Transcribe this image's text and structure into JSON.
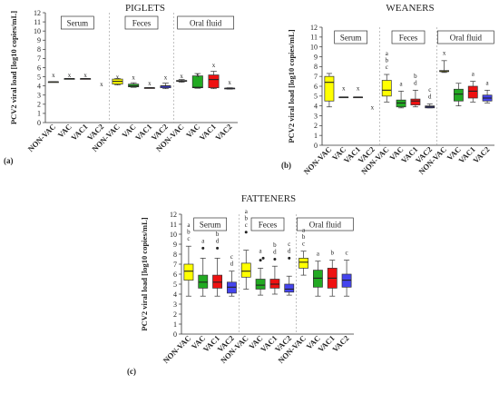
{
  "ylabel": "PCV2 viral load [log10 copies/mL]",
  "groups": [
    "Serum",
    "Feces",
    "Oral fluid"
  ],
  "categories": [
    "NON-VAC",
    "VAC",
    "VAC1",
    "VAC2"
  ],
  "colors": {
    "NON-VAC": "#ffff00",
    "VAC": "#22aa22",
    "VAC1": "#ee1111",
    "VAC2": "#4444ee"
  },
  "chart_data": [
    {
      "type": "box",
      "title": "PIGLETS",
      "panel_label": "(a)",
      "ylim": [
        0,
        12
      ],
      "yticks": [
        0,
        1,
        2,
        3,
        4,
        5,
        6,
        7,
        8,
        9,
        10,
        11,
        12
      ],
      "boxes": [
        {
          "group": "Serum",
          "cat": "NON-VAC",
          "min": 4.45,
          "q1": 4.45,
          "med": 4.45,
          "q3": 4.45,
          "max": 4.45,
          "mean": 5.2,
          "outliers": [],
          "letters": []
        },
        {
          "group": "Serum",
          "cat": "VAC",
          "min": 4.8,
          "q1": 4.8,
          "med": 4.8,
          "q3": 4.8,
          "max": 4.8,
          "mean": 5.2,
          "outliers": [],
          "letters": []
        },
        {
          "group": "Serum",
          "cat": "VAC1",
          "min": 4.8,
          "q1": 4.8,
          "med": 4.8,
          "q3": 4.8,
          "max": 4.8,
          "mean": 5.2,
          "outliers": [],
          "letters": []
        },
        {
          "group": "Serum",
          "cat": "VAC2",
          "min": null,
          "q1": null,
          "med": null,
          "q3": null,
          "max": null,
          "mean": 4.2,
          "outliers": [],
          "letters": []
        },
        {
          "group": "Feces",
          "cat": "NON-VAC",
          "min": 4.1,
          "q1": 4.2,
          "med": 4.5,
          "q3": 4.75,
          "max": 4.8,
          "mean": 5.0,
          "outliers": [],
          "letters": []
        },
        {
          "group": "Feces",
          "cat": "VAC",
          "min": 3.85,
          "q1": 3.9,
          "med": 4.0,
          "q3": 4.2,
          "max": 4.35,
          "mean": 4.95,
          "outliers": [],
          "letters": []
        },
        {
          "group": "Feces",
          "cat": "VAC1",
          "min": 3.8,
          "q1": 3.8,
          "med": 3.8,
          "q3": 3.8,
          "max": 3.8,
          "mean": 4.3,
          "outliers": [],
          "letters": []
        },
        {
          "group": "Feces",
          "cat": "VAC2",
          "min": 3.7,
          "q1": 3.8,
          "med": 4.0,
          "q3": 4.0,
          "max": 4.3,
          "mean": 4.95,
          "outliers": [],
          "letters": []
        },
        {
          "group": "Oral fluid",
          "cat": "NON-VAC",
          "min": 4.4,
          "q1": 4.5,
          "med": 4.55,
          "q3": 4.6,
          "max": 4.7,
          "mean": 5.1,
          "outliers": [],
          "letters": []
        },
        {
          "group": "Oral fluid",
          "cat": "VAC",
          "min": 3.75,
          "q1": 3.8,
          "med": 3.85,
          "q3": 5.1,
          "max": 5.35,
          "mean": 5.2,
          "outliers": [],
          "letters": []
        },
        {
          "group": "Oral fluid",
          "cat": "VAC1",
          "min": 3.7,
          "q1": 3.8,
          "med": 4.7,
          "q3": 5.2,
          "max": 5.6,
          "mean": 6.3,
          "outliers": [],
          "letters": []
        },
        {
          "group": "Oral fluid",
          "cat": "VAC2",
          "min": 3.65,
          "q1": 3.7,
          "med": 3.75,
          "q3": 3.75,
          "max": 3.8,
          "mean": 4.4,
          "outliers": [],
          "letters": []
        }
      ]
    },
    {
      "type": "box",
      "title": "WEANERS",
      "panel_label": "(b)",
      "ylim": [
        0,
        12
      ],
      "yticks": [
        0,
        1,
        2,
        3,
        4,
        5,
        6,
        7,
        8,
        9,
        10,
        11,
        12
      ],
      "boxes": [
        {
          "group": "Serum",
          "cat": "NON-VAC",
          "min": 3.9,
          "q1": 4.5,
          "med": 6.4,
          "q3": 7.0,
          "max": 7.3,
          "mean": null,
          "outliers": [],
          "letters": []
        },
        {
          "group": "Serum",
          "cat": "VAC",
          "min": 4.9,
          "q1": 4.9,
          "med": 4.9,
          "q3": 4.9,
          "max": 4.9,
          "mean": 5.8,
          "outliers": [],
          "letters": []
        },
        {
          "group": "Serum",
          "cat": "VAC1",
          "min": 4.9,
          "q1": 4.9,
          "med": 4.9,
          "q3": 4.9,
          "max": 4.9,
          "mean": 5.8,
          "outliers": [],
          "letters": []
        },
        {
          "group": "Serum",
          "cat": "VAC2",
          "min": null,
          "q1": null,
          "med": null,
          "q3": null,
          "max": null,
          "mean": 3.9,
          "outliers": [],
          "letters": []
        },
        {
          "group": "Feces",
          "cat": "NON-VAC",
          "min": 4.4,
          "q1": 5.0,
          "med": 5.6,
          "q3": 6.6,
          "max": 7.2,
          "mean": null,
          "outliers": [],
          "letters": [
            "a",
            "b",
            "c"
          ]
        },
        {
          "group": "Feces",
          "cat": "VAC",
          "min": 3.8,
          "q1": 3.9,
          "med": 4.3,
          "q3": 4.6,
          "max": 5.5,
          "mean": null,
          "outliers": [],
          "letters": [
            "a"
          ]
        },
        {
          "group": "Feces",
          "cat": "VAC1",
          "min": 3.9,
          "q1": 4.1,
          "med": 4.5,
          "q3": 4.7,
          "max": 5.6,
          "mean": null,
          "outliers": [],
          "letters": [
            "b",
            "d"
          ]
        },
        {
          "group": "Feces",
          "cat": "VAC2",
          "min": 3.8,
          "q1": 3.8,
          "med": 3.9,
          "q3": 4.0,
          "max": 4.2,
          "mean": null,
          "outliers": [],
          "letters": [
            "c",
            "d"
          ]
        },
        {
          "group": "Oral fluid",
          "cat": "NON-VAC",
          "min": 7.4,
          "q1": 7.5,
          "med": 7.5,
          "q3": 7.6,
          "max": 8.6,
          "mean": 9.4,
          "outliers": [],
          "letters": []
        },
        {
          "group": "Oral fluid",
          "cat": "VAC",
          "min": 4.0,
          "q1": 4.5,
          "med": 5.2,
          "q3": 5.7,
          "max": 6.3,
          "mean": null,
          "outliers": [],
          "letters": []
        },
        {
          "group": "Oral fluid",
          "cat": "VAC1",
          "min": 4.4,
          "q1": 4.8,
          "med": 5.5,
          "q3": 6.0,
          "max": 6.5,
          "mean": null,
          "outliers": [],
          "letters": [
            "a"
          ]
        },
        {
          "group": "Oral fluid",
          "cat": "VAC2",
          "min": 4.3,
          "q1": 4.5,
          "med": 4.8,
          "q3": 5.1,
          "max": 5.6,
          "mean": null,
          "outliers": [],
          "letters": [
            "a"
          ]
        }
      ]
    },
    {
      "type": "box",
      "title": "FATTENERS",
      "panel_label": "(c)",
      "ylim": [
        0,
        12
      ],
      "yticks": [
        0,
        1,
        2,
        3,
        4,
        5,
        6,
        7,
        8,
        9,
        10,
        11,
        12
      ],
      "boxes": [
        {
          "group": "Serum",
          "cat": "NON-VAC",
          "min": 3.8,
          "q1": 5.4,
          "med": 6.3,
          "q3": 7.0,
          "max": 8.8,
          "mean": null,
          "outliers": [],
          "letters": [
            "a",
            "b",
            "c"
          ]
        },
        {
          "group": "Serum",
          "cat": "VAC",
          "min": 3.8,
          "q1": 4.6,
          "med": 5.2,
          "q3": 5.9,
          "max": 7.6,
          "mean": null,
          "outliers": [
            8.6
          ],
          "letters": [
            "a"
          ]
        },
        {
          "group": "Serum",
          "cat": "VAC1",
          "min": 3.8,
          "q1": 4.6,
          "med": 5.2,
          "q3": 5.9,
          "max": 7.6,
          "mean": null,
          "outliers": [
            8.6
          ],
          "letters": [
            "b",
            "d"
          ]
        },
        {
          "group": "Serum",
          "cat": "VAC2",
          "min": 3.8,
          "q1": 4.1,
          "med": 4.7,
          "q3": 5.2,
          "max": 6.3,
          "mean": null,
          "outliers": [],
          "letters": [
            "c",
            "d"
          ]
        },
        {
          "group": "Feces",
          "cat": "NON-VAC",
          "min": 4.5,
          "q1": 5.7,
          "med": 6.3,
          "q3": 7.1,
          "max": 8.4,
          "mean": null,
          "outliers": [
            10.2
          ],
          "letters": [
            "a",
            "b",
            "c"
          ]
        },
        {
          "group": "Feces",
          "cat": "VAC",
          "min": 3.9,
          "q1": 4.5,
          "med": 4.9,
          "q3": 5.5,
          "max": 6.6,
          "mean": null,
          "outliers": [
            7.4,
            7.6
          ],
          "letters": [
            "a"
          ]
        },
        {
          "group": "Feces",
          "cat": "VAC1",
          "min": 4.0,
          "q1": 4.6,
          "med": 5.0,
          "q3": 5.5,
          "max": 6.8,
          "mean": null,
          "outliers": [
            7.5
          ],
          "letters": [
            "b",
            "d"
          ]
        },
        {
          "group": "Feces",
          "cat": "VAC2",
          "min": 3.9,
          "q1": 4.2,
          "med": 4.5,
          "q3": 5.0,
          "max": 5.8,
          "mean": null,
          "outliers": [
            7.6
          ],
          "letters": [
            "c",
            "d"
          ]
        },
        {
          "group": "Oral fluid",
          "cat": "NON-VAC",
          "min": 5.9,
          "q1": 6.6,
          "med": 7.2,
          "q3": 7.6,
          "max": 8.3,
          "mean": null,
          "outliers": [],
          "letters": [
            "a",
            "b",
            "c"
          ]
        },
        {
          "group": "Oral fluid",
          "cat": "VAC",
          "min": 3.8,
          "q1": 4.7,
          "med": 5.6,
          "q3": 6.4,
          "max": 7.3,
          "mean": null,
          "outliers": [],
          "letters": [
            "a"
          ]
        },
        {
          "group": "Oral fluid",
          "cat": "VAC1",
          "min": 3.8,
          "q1": 4.6,
          "med": 5.6,
          "q3": 6.6,
          "max": 7.4,
          "mean": null,
          "outliers": [],
          "letters": [
            "b"
          ]
        },
        {
          "group": "Oral fluid",
          "cat": "VAC2",
          "min": 3.8,
          "q1": 4.7,
          "med": 5.4,
          "q3": 6.0,
          "max": 7.4,
          "mean": null,
          "outliers": [],
          "letters": [
            "c"
          ]
        }
      ]
    }
  ]
}
